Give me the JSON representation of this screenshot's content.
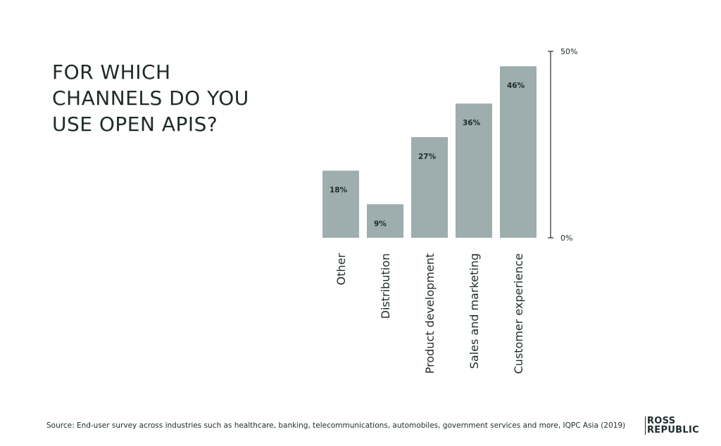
{
  "title_lines": [
    "FOR WHICH",
    "CHANNELS DO YOU",
    "USE OPEN APIS?"
  ],
  "colors": {
    "bar": "#9eadae",
    "text": "#1e2a2a",
    "axis": "#1e2a2a"
  },
  "chart_data": {
    "type": "bar",
    "title": "FOR WHICH CHANNELS DO YOU USE OPEN APIS?",
    "categories": [
      "Other",
      "Distribution",
      "Product development",
      "Sales and marketing",
      "Customer experience"
    ],
    "values": [
      18,
      9,
      27,
      36,
      46
    ],
    "value_labels": [
      "18%",
      "9%",
      "27%",
      "36%",
      "46%"
    ],
    "ylim": [
      0,
      50
    ],
    "y_ticks": [
      {
        "value": 50,
        "label": "50%"
      },
      {
        "value": 0,
        "label": "0%"
      }
    ],
    "axis_position": "right",
    "grid": false,
    "legend": "none",
    "category_label_orientation": "vertical"
  },
  "footer": {
    "source": "Source: End-user survey across industries such as healthcare, banking, telecommunications, automobiles, government services and more, IQPC Asia (2019)",
    "logo_lines": [
      "ROSS",
      "REPUBLIC"
    ]
  }
}
